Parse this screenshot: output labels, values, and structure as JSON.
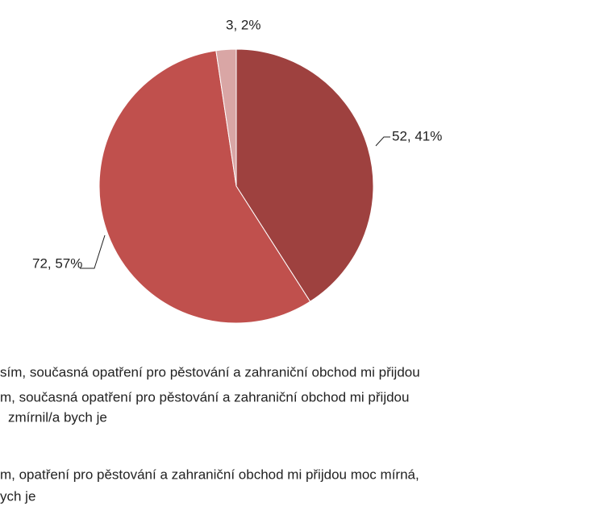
{
  "chart_data": {
    "type": "pie",
    "values": [
      52,
      72,
      3
    ],
    "value_labels": [
      "52, 41%",
      "72, 57%",
      "3, 2%"
    ],
    "colors": [
      "#9e413f",
      "#c0504d",
      "#d9a6a5"
    ],
    "legend_lines": [
      "sím, současná opatření pro pěstování a zahraniční obchod mi přijdou",
      "m, současná opatření pro pěstování a zahraniční obchod mi přijdou",
      "zmírnil/a bych je",
      "m, opatření pro pěstování a zahraniční obchod mi přijdou moc mírná,",
      "ych je"
    ]
  }
}
